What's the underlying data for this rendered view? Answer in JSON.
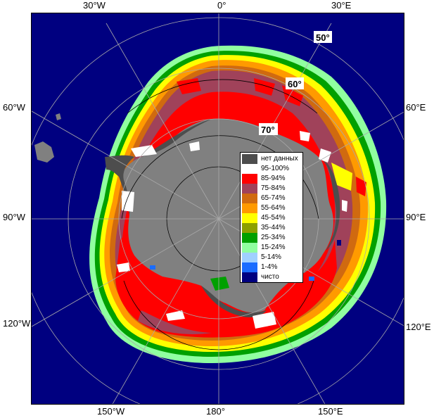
{
  "map": {
    "lon_labels": {
      "w30": "30°W",
      "zero": "0°",
      "e30": "30°E",
      "w60": "60°W",
      "e60": "60°E",
      "w90": "90°W",
      "e90": "90°E",
      "w120": "120°W",
      "e120": "120°E",
      "w150": "150°W",
      "e180": "180°",
      "e150": "150°E"
    },
    "lat_labels": {
      "lat50": "50°",
      "lat60": "60°",
      "lat70": "70°"
    },
    "colors": {
      "ocean_clear": "#000080",
      "land": "#808080",
      "grid": "#a9a9a9"
    }
  },
  "legend": {
    "items": [
      {
        "label": "нет данных",
        "color": "#4d4d4d"
      },
      {
        "label": "95-100%",
        "color": "#ffffff"
      },
      {
        "label": "85-94%",
        "color": "#ff0000"
      },
      {
        "label": "75-84%",
        "color": "#a0425a"
      },
      {
        "label": "65-74%",
        "color": "#d06a10"
      },
      {
        "label": "55-64%",
        "color": "#ff9a00"
      },
      {
        "label": "45-54%",
        "color": "#ffff00"
      },
      {
        "label": "35-44%",
        "color": "#8ca000"
      },
      {
        "label": "25-34%",
        "color": "#00a000"
      },
      {
        "label": "15-24%",
        "color": "#90ffa0"
      },
      {
        "label": "5-14%",
        "color": "#a0d0ff"
      },
      {
        "label": "1-4%",
        "color": "#1a6cff"
      },
      {
        "label": "чисто",
        "color": "#000080"
      }
    ]
  }
}
